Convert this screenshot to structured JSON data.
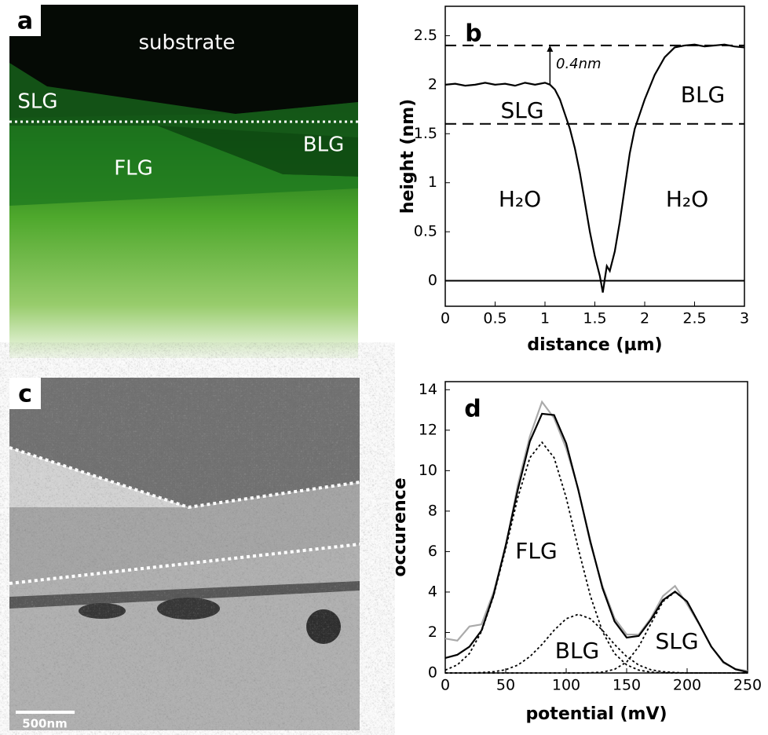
{
  "panels": [
    {
      "label": "a",
      "texts": [
        "substrate",
        "SLG",
        "FLG",
        "BLG"
      ]
    },
    {
      "label": "c",
      "scale_bar": "500nm"
    }
  ],
  "chart_data": [
    {
      "type": "line",
      "panel_label": "b",
      "xlabel": "distance (µm)",
      "ylabel": "height (nm)",
      "x": [
        0,
        0.1,
        0.2,
        0.3,
        0.4,
        0.5,
        0.6,
        0.7,
        0.8,
        0.9,
        1.0,
        1.05,
        1.1,
        1.15,
        1.2,
        1.25,
        1.3,
        1.35,
        1.4,
        1.45,
        1.5,
        1.55,
        1.58,
        1.6,
        1.62,
        1.65,
        1.7,
        1.75,
        1.8,
        1.85,
        1.9,
        1.95,
        2.0,
        2.1,
        2.2,
        2.3,
        2.4,
        2.5,
        2.6,
        2.7,
        2.8,
        2.9,
        3.0
      ],
      "series": [
        {
          "color": "#000000",
          "dash": "solid",
          "values": [
            2.0,
            2.01,
            1.99,
            2.0,
            2.02,
            2.0,
            2.01,
            1.99,
            2.02,
            2.0,
            2.02,
            2.0,
            1.95,
            1.85,
            1.7,
            1.55,
            1.35,
            1.1,
            0.8,
            0.5,
            0.25,
            0.05,
            -0.12,
            0.02,
            0.15,
            0.1,
            0.3,
            0.6,
            0.95,
            1.3,
            1.55,
            1.7,
            1.85,
            2.1,
            2.28,
            2.38,
            2.4,
            2.41,
            2.39,
            2.4,
            2.41,
            2.39,
            2.38
          ]
        }
      ],
      "hlines": [
        {
          "y": 2.4,
          "style": "dashed"
        },
        {
          "y": 1.6,
          "style": "dashed"
        },
        {
          "y": 0,
          "style": "solid"
        }
      ],
      "arrow": {
        "x": 1.05,
        "from": 2.0,
        "to": 2.4
      },
      "annotations": [
        "0.4nm",
        "SLG",
        "BLG",
        "H₂O",
        "H₂O"
      ],
      "xlim": [
        0,
        3
      ],
      "ylim": [
        -0.26,
        2.8
      ],
      "xticks": [
        0,
        0.5,
        1,
        1.5,
        2,
        2.5,
        3
      ],
      "yticks": [
        0,
        0.5,
        1,
        1.5,
        2,
        2.5
      ]
    },
    {
      "type": "line",
      "panel_label": "d",
      "xlabel": "potential (mV)",
      "ylabel": "occurence",
      "x": [
        0,
        10,
        20,
        30,
        40,
        50,
        60,
        70,
        80,
        90,
        100,
        110,
        120,
        130,
        140,
        150,
        160,
        170,
        180,
        190,
        200,
        210,
        220,
        230,
        240,
        250
      ],
      "series": [
        {
          "color": "#aaaaaa",
          "dash": "solid",
          "values": [
            1.7,
            1.6,
            2.3,
            2.4,
            4.0,
            6.2,
            9.3,
            11.7,
            13.4,
            12.6,
            11.1,
            9.1,
            6.4,
            4.3,
            2.7,
            1.9,
            1.9,
            2.7,
            3.8,
            4.3,
            3.4,
            2.4,
            1.3,
            0.5,
            0.2,
            0.1
          ]
        },
        {
          "color": "#000000",
          "dash": "solid",
          "values": [
            0.74,
            0.9,
            1.3,
            2.1,
            3.87,
            6.31,
            9.06,
            11.45,
            12.81,
            12.75,
            11.35,
            9.05,
            6.5,
            4.2,
            2.55,
            1.75,
            1.83,
            2.63,
            3.6,
            4.02,
            3.53,
            2.43,
            1.3,
            0.54,
            0.18,
            0.04
          ]
        },
        {
          "color": "#000000",
          "dash": "dotted",
          "values": [
            0.14,
            0.4,
            0.96,
            2.05,
            3.81,
            6.15,
            8.67,
            10.64,
            11.4,
            10.64,
            8.67,
            6.15,
            3.81,
            2.05,
            0.96,
            0.4,
            0.14,
            0.04,
            0.01,
            0,
            0,
            0,
            0,
            0,
            0,
            0
          ]
        },
        {
          "color": "#000000",
          "dash": "dotted",
          "values": [
            0,
            0,
            0,
            0.02,
            0.06,
            0.16,
            0.39,
            0.81,
            1.41,
            2.11,
            2.68,
            2.9,
            2.68,
            2.11,
            1.41,
            0.81,
            0.39,
            0.16,
            0.06,
            0.02,
            0,
            0,
            0,
            0,
            0,
            0
          ]
        },
        {
          "color": "#000000",
          "dash": "dotted",
          "values": [
            0,
            0,
            0,
            0,
            0,
            0,
            0,
            0,
            0,
            0,
            0,
            0,
            0.01,
            0.04,
            0.18,
            0.54,
            1.3,
            2.43,
            3.53,
            4.0,
            3.53,
            2.43,
            1.3,
            0.54,
            0.18,
            0.04
          ]
        }
      ],
      "annotations": [
        "FLG",
        "BLG",
        "SLG"
      ],
      "xlim": [
        0,
        250
      ],
      "ylim": [
        0,
        14.4
      ],
      "xticks": [
        0,
        50,
        100,
        150,
        200,
        250
      ],
      "yticks": [
        0,
        2,
        4,
        6,
        8,
        10,
        12,
        14
      ]
    }
  ]
}
